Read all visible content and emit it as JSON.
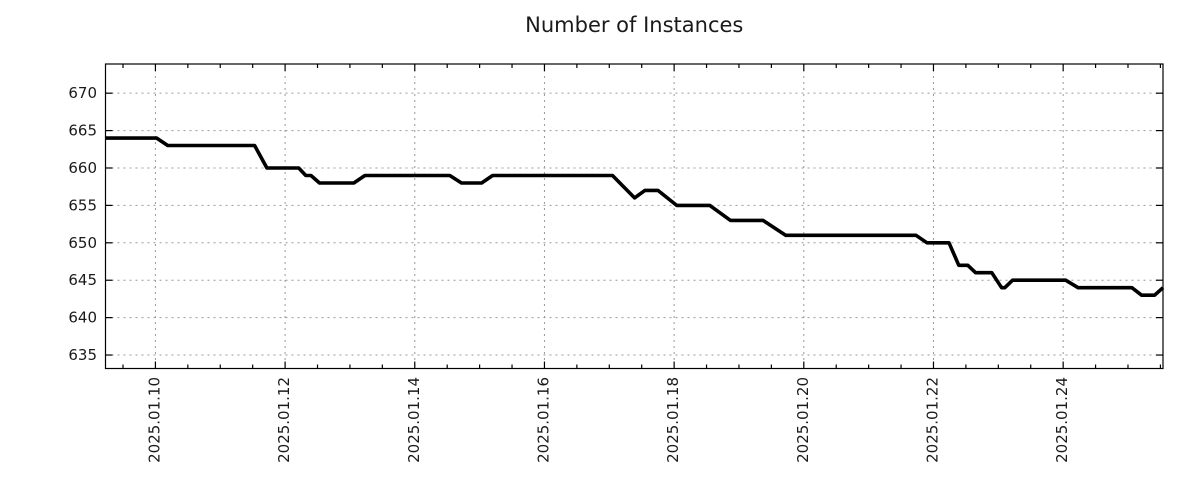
{
  "chart_data": {
    "type": "line",
    "title": "Number of Instances",
    "legend": "none",
    "x_axis": {
      "unit": "days since 2025-01-09 00:00",
      "range": [
        0.23,
        16.54
      ],
      "major_ticks": [
        {
          "pos": 1,
          "label": "2025.01.10"
        },
        {
          "pos": 3,
          "label": "2025.01.12"
        },
        {
          "pos": 5,
          "label": "2025.01.14"
        },
        {
          "pos": 7,
          "label": "2025.01.16"
        },
        {
          "pos": 9,
          "label": "2025.01.18"
        },
        {
          "pos": 11,
          "label": "2025.01.20"
        },
        {
          "pos": 13,
          "label": "2025.01.22"
        },
        {
          "pos": 15,
          "label": "2025.01.24"
        }
      ],
      "minor_tick_step": 0.5
    },
    "y_axis": {
      "range": [
        633.2,
        673.9
      ],
      "major_ticks": [
        635,
        640,
        645,
        650,
        655,
        660,
        665,
        670
      ]
    },
    "grid": {
      "show": true,
      "color": "#999999",
      "dash": [
        2,
        4
      ]
    },
    "line": {
      "color": "#000000",
      "width": 3.6
    },
    "series": [
      {
        "name": "instances",
        "points": [
          [
            0.23,
            664
          ],
          [
            1.02,
            664
          ],
          [
            1.19,
            663
          ],
          [
            2.53,
            663
          ],
          [
            2.72,
            660
          ],
          [
            3.21,
            660
          ],
          [
            3.32,
            659
          ],
          [
            3.4,
            659
          ],
          [
            3.53,
            658
          ],
          [
            4.06,
            658
          ],
          [
            4.23,
            659
          ],
          [
            5.54,
            659
          ],
          [
            5.72,
            658
          ],
          [
            6.03,
            658
          ],
          [
            6.2,
            659
          ],
          [
            8.05,
            659
          ],
          [
            8.39,
            656
          ],
          [
            8.55,
            657
          ],
          [
            8.75,
            657
          ],
          [
            9.04,
            655
          ],
          [
            9.55,
            655
          ],
          [
            9.87,
            653
          ],
          [
            10.37,
            653
          ],
          [
            10.72,
            651
          ],
          [
            12.73,
            651
          ],
          [
            12.9,
            650
          ],
          [
            13.24,
            650
          ],
          [
            13.39,
            647
          ],
          [
            13.53,
            647
          ],
          [
            13.65,
            646
          ],
          [
            13.9,
            646
          ],
          [
            14.05,
            644
          ],
          [
            14.1,
            644
          ],
          [
            14.22,
            645
          ],
          [
            15.04,
            645
          ],
          [
            15.23,
            644
          ],
          [
            16.06,
            644
          ],
          [
            16.21,
            643
          ],
          [
            16.41,
            643
          ],
          [
            16.54,
            644
          ]
        ]
      }
    ]
  }
}
